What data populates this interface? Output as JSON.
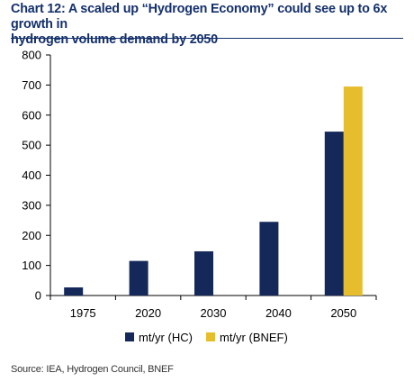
{
  "header": {
    "title_line1": "Chart 12: A scaled up “Hydrogen Economy” could  see up to 6x growth in",
    "title_line2": "hydrogen volume demand by 2050"
  },
  "source": "Source: IEA, Hydrogen Council, BNEF",
  "colors": {
    "hc": "#14285a",
    "bnef": "#e6be2d",
    "axis": "#000000",
    "text": "#000000"
  },
  "chart_data": {
    "type": "bar",
    "title": "Chart 12: A scaled up “Hydrogen Economy” could  see up to 6x growth in hydrogen volume demand by 2050",
    "categories": [
      "1975",
      "2020",
      "2030",
      "2040",
      "2050"
    ],
    "series": [
      {
        "name": "mt/yr (HC)",
        "values": [
          27,
          115,
          147,
          245,
          545
        ]
      },
      {
        "name": "mt/yr (BNEF)",
        "values": [
          null,
          null,
          null,
          null,
          695
        ]
      }
    ],
    "yticks": [
      0,
      100,
      200,
      300,
      400,
      500,
      600,
      700,
      800
    ],
    "ylim": [
      0,
      800
    ],
    "grid": false,
    "legend": "bottom"
  }
}
